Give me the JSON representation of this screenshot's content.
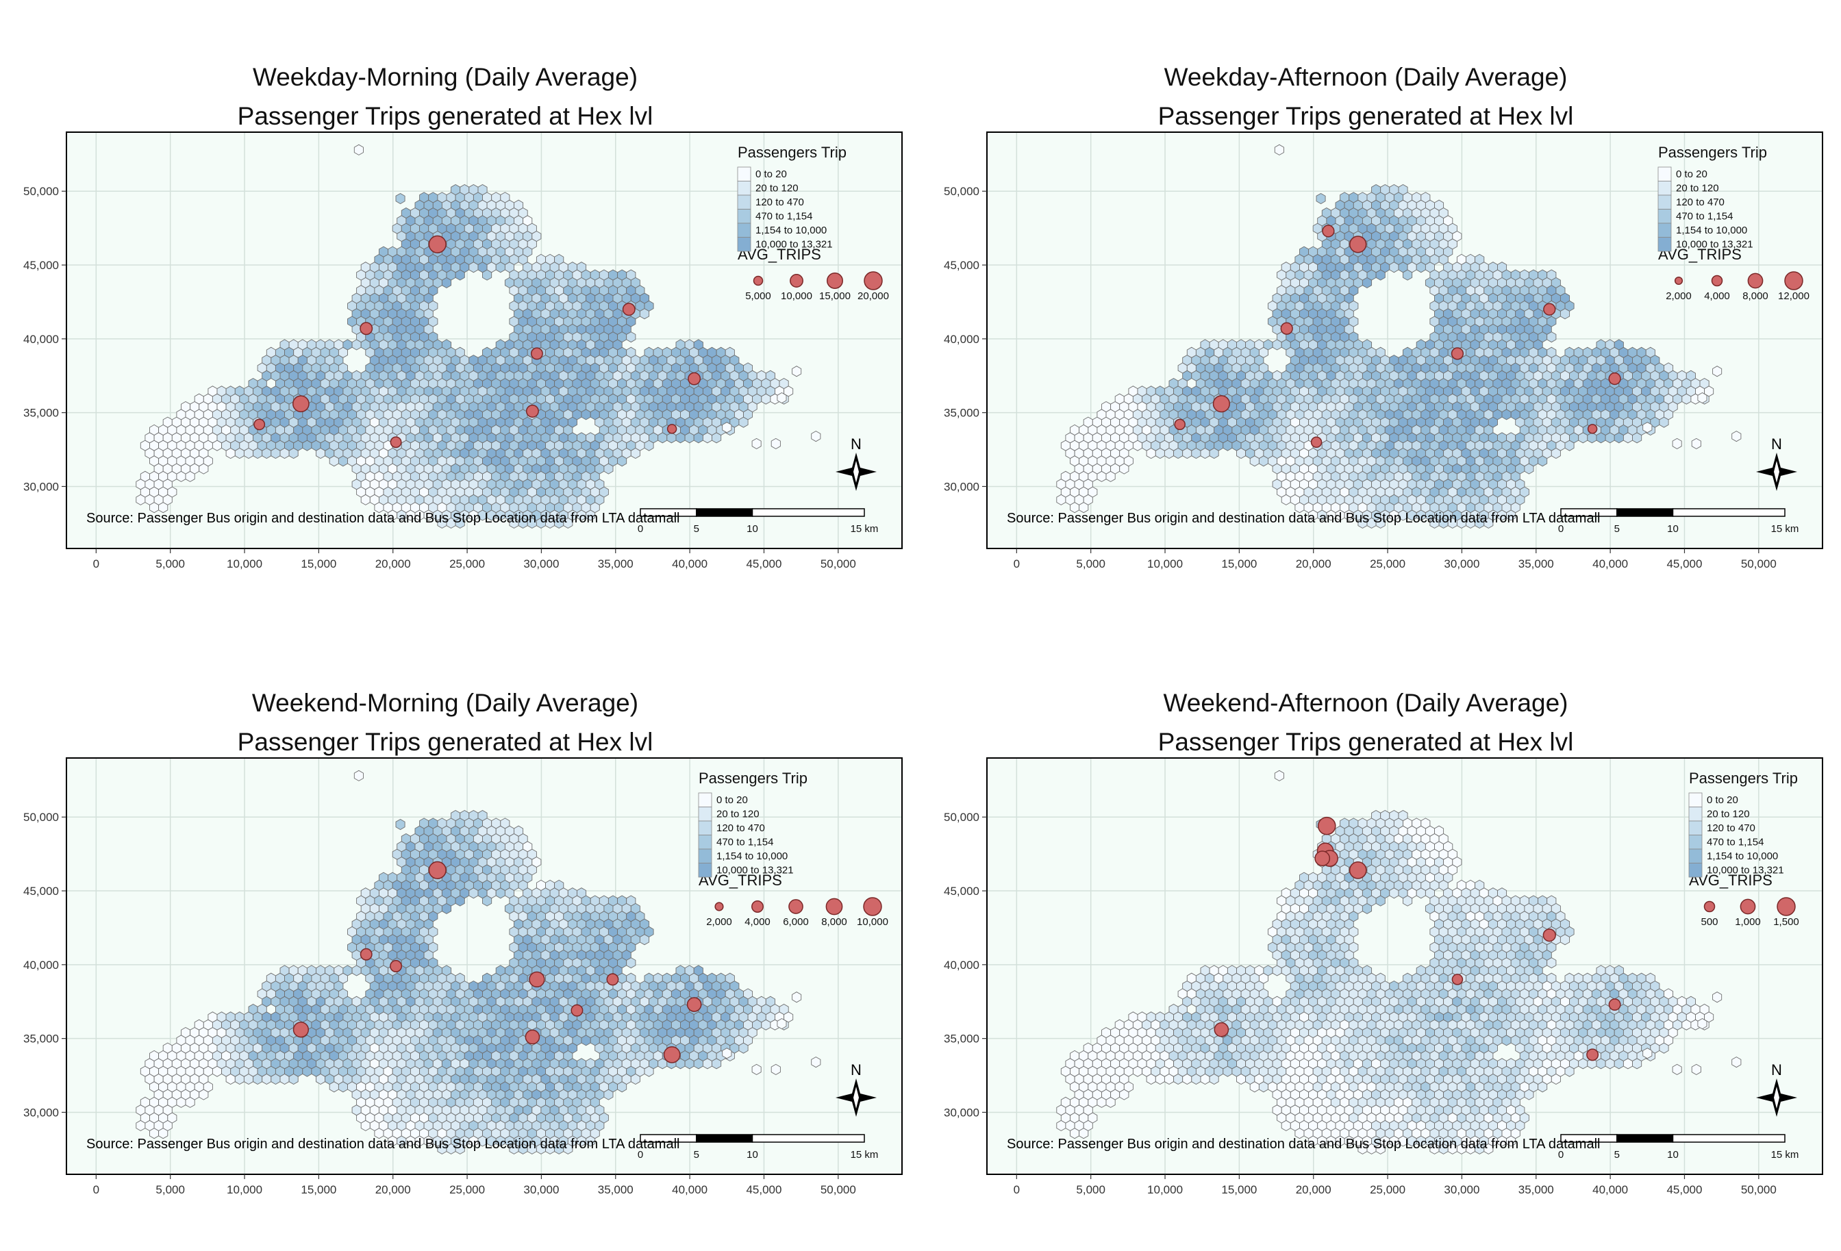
{
  "panels": [
    {
      "title_line1": "Weekday-Morning (Daily Average)",
      "title_line2": "Passenger Trips generated at Hex lvl",
      "hex_legend_title": "Passengers Trip",
      "hex_classes": [
        "0 to 20",
        "20 to 120",
        "120 to 470",
        "470 to 1,154",
        "1,154 to 10,000",
        "10,000 to 13,321"
      ],
      "bubble_legend_title": "AVG_TRIPS",
      "bubble_labels": [
        "5,000",
        "10,000",
        "15,000",
        "20,000"
      ],
      "bubble_values": [
        5000,
        10000,
        15000,
        20000
      ],
      "bubble_max": 20000,
      "intensity": 0.85,
      "points": [
        [
          23000,
          46400,
          18000
        ],
        [
          13800,
          35600,
          16000
        ],
        [
          18200,
          40700,
          9000
        ],
        [
          35900,
          42000,
          9000
        ],
        [
          29700,
          39000,
          8000
        ],
        [
          29400,
          35100,
          9000
        ],
        [
          40300,
          37300,
          9000
        ],
        [
          20200,
          33000,
          7000
        ],
        [
          11000,
          34200,
          7000
        ],
        [
          38800,
          33900,
          5000
        ]
      ]
    },
    {
      "title_line1": "Weekday-Afternoon (Daily Average)",
      "title_line2": "Passenger Trips generated at Hex lvl",
      "hex_legend_title": "Passengers Trip",
      "hex_classes": [
        "0 to 20",
        "20 to 120",
        "120 to 470",
        "470 to 1,154",
        "1,154 to 10,000",
        "10,000 to 13,321"
      ],
      "bubble_legend_title": "AVG_TRIPS",
      "bubble_labels": [
        "2,000",
        "4,000",
        "8,000",
        "12,000"
      ],
      "bubble_values": [
        2000,
        4000,
        8000,
        12000
      ],
      "bubble_max": 12000,
      "intensity": 0.8,
      "points": [
        [
          23000,
          46400,
          10000
        ],
        [
          21000,
          47300,
          5000
        ],
        [
          13800,
          35600,
          10000
        ],
        [
          18200,
          40700,
          5000
        ],
        [
          35900,
          42000,
          5000
        ],
        [
          29700,
          39000,
          5000
        ],
        [
          40300,
          37300,
          5000
        ],
        [
          20200,
          33000,
          4000
        ],
        [
          11000,
          34200,
          4000
        ],
        [
          38800,
          33900,
          3000
        ]
      ]
    },
    {
      "title_line1": "Weekend-Morning (Daily Average)",
      "title_line2": "Passenger Trips generated at Hex lvl",
      "hex_legend_title": "Passengers Trip",
      "hex_classes": [
        "0 to 20",
        "20 to 120",
        "120 to 470",
        "470 to 1,154",
        "1,154 to 10,000",
        "10,000 to 13,321"
      ],
      "bubble_legend_title": "AVG_TRIPS",
      "bubble_labels": [
        "2,000",
        "4,000",
        "6,000",
        "8,000",
        "10,000"
      ],
      "bubble_values": [
        2000,
        4000,
        6000,
        8000,
        10000
      ],
      "bubble_max": 10000,
      "intensity": 0.78,
      "points": [
        [
          23000,
          46400,
          9000
        ],
        [
          13800,
          35600,
          7000
        ],
        [
          18200,
          40700,
          4000
        ],
        [
          20200,
          39900,
          4000
        ],
        [
          29700,
          39000,
          7000
        ],
        [
          34800,
          39000,
          4000
        ],
        [
          32400,
          36900,
          4000
        ],
        [
          40300,
          37300,
          6000
        ],
        [
          29400,
          35100,
          6000
        ],
        [
          38800,
          33900,
          8000
        ]
      ]
    },
    {
      "title_line1": "Weekend-Afternoon (Daily Average)",
      "title_line2": "Passenger Trips generated at Hex lvl",
      "hex_legend_title": "Passengers Trip",
      "hex_classes": [
        "0 to 20",
        "20 to 120",
        "120 to 470",
        "470 to 1,154",
        "1,154 to 10,000",
        "10,000 to 13,321"
      ],
      "bubble_legend_title": "AVG_TRIPS",
      "bubble_labels": [
        "500",
        "1,000",
        "1,500"
      ],
      "bubble_values": [
        500,
        1000,
        1500
      ],
      "bubble_max": 1500,
      "intensity": 0.45,
      "points": [
        [
          20900,
          49400,
          1400
        ],
        [
          20800,
          47700,
          1200
        ],
        [
          21100,
          47200,
          1200
        ],
        [
          20600,
          47200,
          1000
        ],
        [
          23000,
          46400,
          1300
        ],
        [
          13800,
          35600,
          900
        ],
        [
          35900,
          42000,
          700
        ],
        [
          29700,
          39000,
          500
        ],
        [
          40300,
          37300,
          600
        ],
        [
          38800,
          33900,
          600
        ]
      ]
    }
  ],
  "x_ticks": [
    "0",
    "5,000",
    "10,000",
    "15,000",
    "20,000",
    "25,000",
    "30,000",
    "35,000",
    "40,000",
    "45,000",
    "50,000"
  ],
  "x_tick_values": [
    0,
    5000,
    10000,
    15000,
    20000,
    25000,
    30000,
    35000,
    40000,
    45000,
    50000
  ],
  "y_ticks": [
    "30,000",
    "35,000",
    "40,000",
    "45,000",
    "50,000"
  ],
  "y_tick_values": [
    30000,
    35000,
    40000,
    45000,
    50000
  ],
  "x_range": [
    -2000,
    54300
  ],
  "y_range": [
    25800,
    54000
  ],
  "source_text": "Source: Passenger Bus origin and destination data and Bus Stop Location data from LTA datamall",
  "north_label": "N",
  "scale_labels": [
    "0",
    "5",
    "10",
    "15 km"
  ],
  "colors": {
    "panel_bg": "#f4fcf8",
    "grid": "#d3e0da",
    "hex_stroke": "#6f6f6f",
    "hex_classes": [
      "#f7fbff",
      "#dcebf5",
      "#c4dcec",
      "#a9cbe1",
      "#93bbd8",
      "#84aed2"
    ],
    "bubble_fill": "#d06768",
    "bubble_stroke": "#7a2828"
  }
}
